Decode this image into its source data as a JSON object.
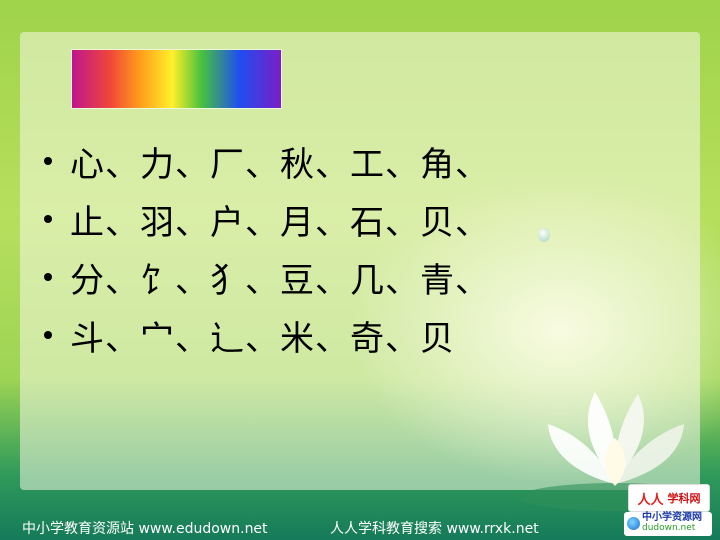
{
  "slide": {
    "items": [
      "心、力、厂、秋、工、角、",
      "止、羽、户、月、石、贝、",
      "分、饣、犭、豆、几、青、",
      "斗、宀、辶、米、奇、贝"
    ]
  },
  "footer": {
    "left": "中小学教育资源站 www.edudown.net",
    "right": "人人学科教育搜索 www.rrxk.net"
  },
  "badges": {
    "xuekewang_mark": "人人",
    "xuekewang_text": "学科网",
    "edudown_text": "中小学资源网",
    "edudown_sub": "dudown.net"
  },
  "colors": {
    "text": "#000000",
    "background_top": "#9fd34a",
    "background_bottom": "#157a5a"
  }
}
